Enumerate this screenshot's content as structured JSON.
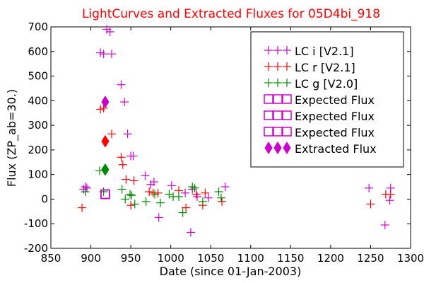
{
  "chart_data": {
    "type": "scatter",
    "title": "LightCurves and Extracted Fluxes for 05D4bi_918",
    "xlabel": "Date (since 01-Jan-2003)",
    "ylabel": "Flux (ZP_ab=30.)",
    "xlim": [
      850,
      1300
    ],
    "ylim": [
      -200,
      700
    ],
    "x_ticks": [
      "850",
      "900",
      "950",
      "1000",
      "1050",
      "1100",
      "1150",
      "1200",
      "1250",
      "1300"
    ],
    "y_ticks": [
      "-200",
      "-100",
      "0",
      "100",
      "200",
      "300",
      "400",
      "500",
      "600",
      "700"
    ],
    "grid": false,
    "legend_position": "top-right",
    "series": [
      {
        "name": "LC i [V2.1]",
        "marker": "plus",
        "color": "#cc00cc",
        "points": [
          [
            891,
            40
          ],
          [
            893,
            50
          ],
          [
            895,
            45
          ],
          [
            912,
            595
          ],
          [
            916,
            590
          ],
          [
            920,
            690
          ],
          [
            924,
            680
          ],
          [
            926,
            590
          ],
          [
            938,
            465
          ],
          [
            942,
            395
          ],
          [
            946,
            265
          ],
          [
            950,
            175
          ],
          [
            953,
            175
          ],
          [
            968,
            95
          ],
          [
            975,
            60
          ],
          [
            979,
            70
          ],
          [
            985,
            -75
          ],
          [
            1001,
            55
          ],
          [
            1018,
            25
          ],
          [
            1025,
            -135
          ],
          [
            1027,
            40
          ],
          [
            1033,
            10
          ],
          [
            1047,
            5
          ],
          [
            1068,
            50
          ],
          [
            1248,
            45
          ],
          [
            1268,
            -105
          ],
          [
            1274,
            -5
          ],
          [
            1275,
            45
          ]
        ]
      },
      {
        "name": "LC r [V2.1]",
        "marker": "plus",
        "color": "#ff0000",
        "points": [
          [
            889,
            -35
          ],
          [
            912,
            365
          ],
          [
            916,
            370
          ],
          [
            926,
            265
          ],
          [
            938,
            170
          ],
          [
            940,
            140
          ],
          [
            944,
            80
          ],
          [
            950,
            -25
          ],
          [
            954,
            75
          ],
          [
            973,
            30
          ],
          [
            978,
            25
          ],
          [
            984,
            25
          ],
          [
            1010,
            35
          ],
          [
            1019,
            -35
          ],
          [
            1032,
            20
          ],
          [
            1040,
            -25
          ],
          [
            1043,
            25
          ],
          [
            1064,
            -10
          ],
          [
            1250,
            -20
          ],
          [
            1269,
            20
          ],
          [
            1275,
            20
          ]
        ]
      },
      {
        "name": "LC g [V2.0]",
        "marker": "plus",
        "color": "#008800",
        "points": [
          [
            893,
            30
          ],
          [
            911,
            115
          ],
          [
            916,
            30
          ],
          [
            939,
            40
          ],
          [
            943,
            0
          ],
          [
            949,
            20
          ],
          [
            951,
            15
          ],
          [
            955,
            -20
          ],
          [
            969,
            -10
          ],
          [
            980,
            20
          ],
          [
            987,
            -15
          ],
          [
            998,
            20
          ],
          [
            1003,
            10
          ],
          [
            1010,
            10
          ],
          [
            1015,
            -55
          ],
          [
            1027,
            50
          ],
          [
            1030,
            45
          ],
          [
            1040,
            -10
          ],
          [
            1060,
            30
          ],
          [
            1063,
            5
          ]
        ]
      },
      {
        "name": "Expected Flux",
        "marker": "square",
        "color": "#cc00cc",
        "points": [
          [
            918,
            20
          ]
        ]
      },
      {
        "name": "Expected Flux",
        "marker": "square",
        "color": "#cc00cc",
        "points": [
          [
            918,
            20
          ]
        ]
      },
      {
        "name": "Expected Flux",
        "marker": "square",
        "color": "#cc00cc",
        "points": [
          [
            918,
            20
          ]
        ]
      },
      {
        "name": "Extracted Flux",
        "marker": "diamond",
        "color": "#cc00cc",
        "points": [
          [
            918,
            395
          ]
        ]
      },
      {
        "name": "",
        "marker": "diamond",
        "color": "#ff0000",
        "points": [
          [
            918,
            235
          ]
        ]
      },
      {
        "name": "",
        "marker": "diamond",
        "color": "#008800",
        "points": [
          [
            918,
            120
          ]
        ]
      }
    ],
    "legend": [
      {
        "label": "LC i [V2.1]",
        "marker": "plus",
        "color": "#cc00cc"
      },
      {
        "label": "LC r [V2.1]",
        "marker": "plus",
        "color": "#ff0000"
      },
      {
        "label": "LC g [V2.0]",
        "marker": "plus",
        "color": "#008800"
      },
      {
        "label": "Expected Flux",
        "marker": "square",
        "color": "#cc00cc"
      },
      {
        "label": "Expected Flux",
        "marker": "square",
        "color": "#cc00cc"
      },
      {
        "label": "Expected Flux",
        "marker": "square",
        "color": "#cc00cc"
      },
      {
        "label": "Extracted Flux",
        "marker": "diamond",
        "color": "#cc00cc"
      }
    ],
    "title_color": "#ff0000"
  }
}
